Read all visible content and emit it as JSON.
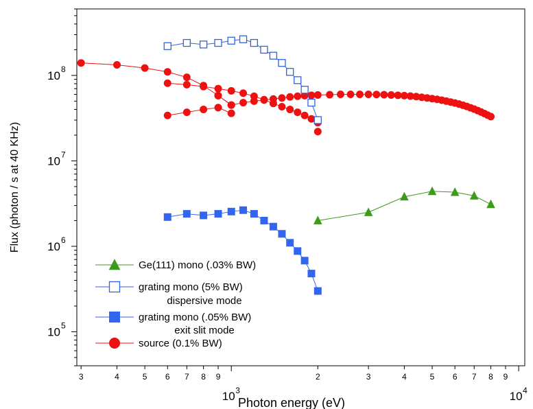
{
  "chart_data": {
    "type": "scatter",
    "xlabel": "Photon energy (eV)",
    "ylabel": "Flux (photon / s at 40 KHz)",
    "x_scale": "log",
    "y_scale": "log",
    "xlim": [
      290,
      10500
    ],
    "ylim": [
      40000,
      600000000
    ],
    "grid": false,
    "legend_position": "bottom-left",
    "x_ticks": {
      "major": [
        {
          "value": 1000,
          "label": "10",
          "exp": "3"
        },
        {
          "value": 10000,
          "label": "10",
          "exp": "4"
        }
      ],
      "minor": [
        {
          "value": 300,
          "label": "3"
        },
        {
          "value": 400,
          "label": "4"
        },
        {
          "value": 500,
          "label": "5"
        },
        {
          "value": 600,
          "label": "6"
        },
        {
          "value": 700,
          "label": "7"
        },
        {
          "value": 800,
          "label": "8"
        },
        {
          "value": 900,
          "label": "9"
        },
        {
          "value": 2000,
          "label": "2"
        },
        {
          "value": 3000,
          "label": "3"
        },
        {
          "value": 4000,
          "label": "4"
        },
        {
          "value": 5000,
          "label": "5"
        },
        {
          "value": 6000,
          "label": "6"
        },
        {
          "value": 7000,
          "label": "7"
        },
        {
          "value": 8000,
          "label": "8"
        },
        {
          "value": 9000,
          "label": "9"
        }
      ]
    },
    "y_ticks": [
      {
        "value": 100000,
        "label": "10",
        "exp": "5"
      },
      {
        "value": 1000000,
        "label": "10",
        "exp": "6"
      },
      {
        "value": 10000000,
        "label": "10",
        "exp": "7"
      },
      {
        "value": 100000000,
        "label": "10",
        "exp": "8"
      }
    ],
    "series": [
      {
        "name": "Ge(111) mono (.03% BW)",
        "marker": "triangle",
        "filled": true,
        "color": "#3d9a1e",
        "points": [
          [
            2000,
            2000000
          ],
          [
            3000,
            2500000
          ],
          [
            4000,
            3800000
          ],
          [
            5000,
            4400000
          ],
          [
            6000,
            4300000
          ],
          [
            7000,
            3900000
          ],
          [
            8000,
            3100000
          ]
        ]
      },
      {
        "name": "grating mono (5% BW)",
        "subtitle": "dispersive mode",
        "marker": "square",
        "filled": false,
        "color": "#2f62e0",
        "points": [
          [
            600,
            220000000
          ],
          [
            700,
            240000000
          ],
          [
            800,
            230000000
          ],
          [
            900,
            240000000
          ],
          [
            1000,
            255000000
          ],
          [
            1100,
            265000000
          ],
          [
            1200,
            240000000
          ],
          [
            1300,
            200000000
          ],
          [
            1400,
            170000000
          ],
          [
            1500,
            140000000
          ],
          [
            1600,
            110000000
          ],
          [
            1700,
            88000000
          ],
          [
            1800,
            68000000
          ],
          [
            1900,
            48000000
          ],
          [
            2000,
            30000000
          ]
        ]
      },
      {
        "name": "grating mono (.05% BW)",
        "subtitle": "exit slit mode",
        "marker": "square",
        "filled": true,
        "color": "#3366ee",
        "points": [
          [
            600,
            2200000
          ],
          [
            700,
            2400000
          ],
          [
            800,
            2300000
          ],
          [
            900,
            2400000
          ],
          [
            1000,
            2550000
          ],
          [
            1100,
            2650000
          ],
          [
            1200,
            2400000
          ],
          [
            1300,
            2000000
          ],
          [
            1400,
            1700000
          ],
          [
            1500,
            1400000
          ],
          [
            1600,
            1100000
          ],
          [
            1700,
            880000
          ],
          [
            1800,
            680000
          ],
          [
            1900,
            480000
          ],
          [
            2000,
            300000
          ]
        ]
      },
      {
        "name": "source (0.1% BW)",
        "marker": "circle",
        "filled": true,
        "color": "#ee1111",
        "segments": [
          [
            [
              300,
              140000000
            ],
            [
              400,
              133000000
            ],
            [
              500,
              122000000
            ],
            [
              600,
              110000000
            ],
            [
              700,
              95000000
            ],
            [
              800,
              76000000
            ],
            [
              900,
              58000000
            ],
            [
              1000,
              45000000
            ],
            [
              1100,
              48000000
            ],
            [
              1200,
              50000000
            ],
            [
              1300,
              51500000
            ],
            [
              1400,
              53000000
            ],
            [
              1500,
              54500000
            ],
            [
              1600,
              56000000
            ],
            [
              1700,
              57000000
            ],
            [
              1800,
              58000000
            ],
            [
              1900,
              58500000
            ],
            [
              2000,
              59000000
            ],
            [
              2200,
              59500000
            ],
            [
              2400,
              60000000
            ],
            [
              2600,
              60000000
            ],
            [
              2800,
              60000000
            ],
            [
              3000,
              60000000
            ],
            [
              3200,
              59800000
            ],
            [
              3400,
              59500000
            ],
            [
              3600,
              59000000
            ],
            [
              3800,
              58500000
            ],
            [
              4000,
              58000000
            ],
            [
              4200,
              57300000
            ],
            [
              4400,
              56500000
            ],
            [
              4600,
              55500000
            ],
            [
              4800,
              54500000
            ],
            [
              5000,
              53500000
            ],
            [
              5200,
              52500000
            ],
            [
              5400,
              51300000
            ],
            [
              5600,
              50000000
            ],
            [
              5800,
              48800000
            ],
            [
              6000,
              47500000
            ],
            [
              6200,
              46200000
            ],
            [
              6400,
              44800000
            ],
            [
              6600,
              43300000
            ],
            [
              6800,
              41800000
            ],
            [
              7000,
              40300000
            ],
            [
              7200,
              38800000
            ],
            [
              7400,
              37300000
            ],
            [
              7600,
              35800000
            ],
            [
              7800,
              34300000
            ],
            [
              8000,
              33000000
            ]
          ],
          [
            [
              600,
              81000000
            ],
            [
              700,
              78000000
            ],
            [
              800,
              74000000
            ],
            [
              900,
              70000000
            ],
            [
              1000,
              66000000
            ],
            [
              1100,
              62000000
            ],
            [
              1200,
              57000000
            ],
            [
              1300,
              52000000
            ],
            [
              1400,
              47000000
            ],
            [
              1500,
              43000000
            ],
            [
              1600,
              40000000
            ],
            [
              1700,
              37000000
            ],
            [
              1800,
              34000000
            ],
            [
              1900,
              31000000
            ],
            [
              2000,
              28000000
            ]
          ],
          [
            [
              600,
              34000000
            ],
            [
              700,
              37000000
            ],
            [
              800,
              40000000
            ],
            [
              900,
              42000000
            ],
            [
              1000,
              36000000
            ]
          ],
          [
            [
              900,
              58000000
            ],
            [
              1000,
              45000000
            ]
          ],
          [
            [
              2000,
              22000000
            ]
          ]
        ]
      }
    ]
  }
}
